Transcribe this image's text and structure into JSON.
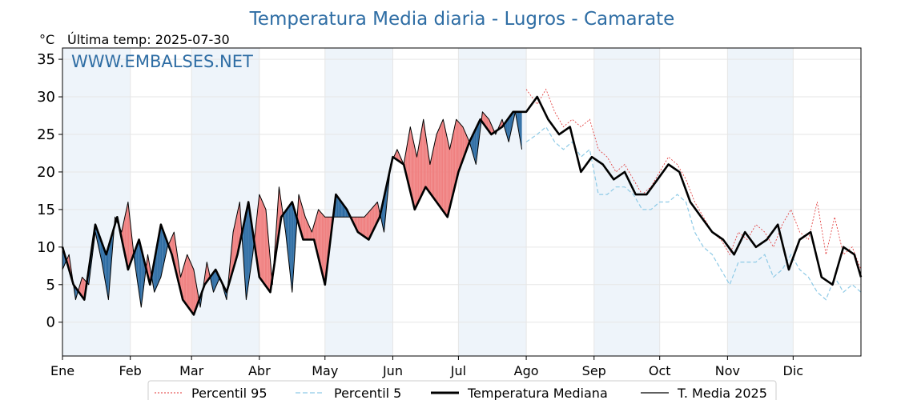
{
  "chart_data": {
    "type": "line",
    "title": "Temperatura Media diaria - Lugros - Camarate",
    "unit_label": "°C",
    "last_temp_label": "Última temp: 2025-07-30",
    "watermark": "WWW.EMBALSES.NET",
    "ylim": [
      -4.5,
      36.5
    ],
    "xlim": [
      1,
      366
    ],
    "yticks": [
      0,
      5,
      10,
      15,
      20,
      25,
      30,
      35
    ],
    "months": [
      {
        "label": "Ene",
        "day": 1
      },
      {
        "label": "Feb",
        "day": 32
      },
      {
        "label": "Mar",
        "day": 60
      },
      {
        "label": "Abr",
        "day": 91
      },
      {
        "label": "May",
        "day": 121
      },
      {
        "label": "Jun",
        "day": 152
      },
      {
        "label": "Jul",
        "day": 182
      },
      {
        "label": "Ago",
        "day": 213
      },
      {
        "label": "Sep",
        "day": 244
      },
      {
        "label": "Oct",
        "day": 274
      },
      {
        "label": "Nov",
        "day": 305
      },
      {
        "label": "Dic",
        "day": 335
      }
    ],
    "shaded_months": [
      "Ene",
      "Mar",
      "May",
      "Jul",
      "Sep",
      "Nov"
    ],
    "grid": true,
    "colors": {
      "p95": "#e03030",
      "p5": "#8ecae6",
      "median": "#000000",
      "media2025": "#000000",
      "warm_fill": "#f08080",
      "cold_fill": "#2e6da4",
      "band": "#eef4fa",
      "title": "#2e6da4"
    },
    "series": [
      {
        "name": "Percentil 95",
        "style": "dotted",
        "x": [
          213,
          218,
          222,
          226,
          230,
          234,
          238,
          242,
          246,
          250,
          254,
          258,
          262,
          266,
          270,
          274,
          278,
          282,
          286,
          290,
          294,
          298,
          302,
          306,
          310,
          314,
          318,
          322,
          326,
          330,
          334,
          338,
          342,
          346,
          350,
          354,
          358,
          362,
          366
        ],
        "values": [
          31,
          29,
          31,
          28,
          26,
          27,
          26,
          27,
          23,
          22,
          20,
          21,
          19,
          17,
          18,
          20,
          22,
          21,
          19,
          16,
          14,
          12,
          11,
          9,
          12,
          11,
          13,
          12,
          10,
          13,
          15,
          12,
          11,
          16,
          9,
          14,
          9,
          10,
          7
        ]
      },
      {
        "name": "Percentil 5",
        "style": "dashed",
        "x": [
          213,
          218,
          222,
          226,
          230,
          234,
          238,
          242,
          246,
          250,
          254,
          258,
          262,
          266,
          270,
          274,
          278,
          282,
          286,
          290,
          294,
          298,
          302,
          306,
          310,
          314,
          318,
          322,
          326,
          330,
          334,
          338,
          342,
          346,
          350,
          354,
          358,
          362,
          366
        ],
        "values": [
          24,
          25,
          26,
          24,
          23,
          24,
          22,
          23,
          17,
          17,
          18,
          18,
          17,
          15,
          15,
          16,
          16,
          17,
          16,
          12,
          10,
          9,
          7,
          5,
          8,
          8,
          8,
          9,
          6,
          7,
          9,
          7,
          6,
          4,
          3,
          6,
          4,
          5,
          4
        ]
      },
      {
        "name": "Temperatura Mediana",
        "style": "solid-thick",
        "x": [
          1,
          6,
          11,
          16,
          21,
          26,
          31,
          36,
          41,
          46,
          51,
          56,
          61,
          66,
          71,
          76,
          81,
          86,
          91,
          96,
          101,
          106,
          111,
          116,
          121,
          126,
          131,
          136,
          141,
          146,
          152,
          157,
          162,
          167,
          172,
          177,
          182,
          187,
          192,
          197,
          202,
          207,
          213,
          218,
          223,
          228,
          233,
          238,
          243,
          248,
          253,
          258,
          263,
          268,
          273,
          278,
          283,
          288,
          293,
          298,
          303,
          308,
          313,
          318,
          323,
          328,
          333,
          338,
          343,
          348,
          353,
          358,
          363,
          366
        ],
        "values": [
          10,
          5,
          3,
          13,
          9,
          14,
          7,
          11,
          5,
          13,
          9,
          3,
          1,
          5,
          7,
          4,
          9,
          16,
          6,
          4,
          14,
          16,
          11,
          11,
          5,
          17,
          15,
          12,
          11,
          14,
          22,
          21,
          15,
          18,
          16,
          14,
          20,
          24,
          27,
          25,
          26,
          28,
          28,
          30,
          27,
          25,
          26,
          20,
          22,
          21,
          19,
          20,
          17,
          17,
          19,
          21,
          20,
          16,
          14,
          12,
          11,
          9,
          12,
          10,
          11,
          13,
          7,
          11,
          12,
          6,
          5,
          10,
          9,
          6
        ],
        "x_end": 366
      },
      {
        "name": "T. Media 2025",
        "style": "solid",
        "x": [
          1,
          4,
          7,
          10,
          13,
          16,
          19,
          22,
          25,
          28,
          31,
          34,
          37,
          40,
          43,
          46,
          49,
          52,
          55,
          58,
          61,
          64,
          67,
          70,
          73,
          76,
          79,
          82,
          85,
          88,
          91,
          94,
          97,
          100,
          103,
          106,
          109,
          112,
          115,
          118,
          121,
          124,
          127,
          130,
          133,
          136,
          139,
          142,
          145,
          148,
          151,
          154,
          157,
          160,
          163,
          166,
          169,
          172,
          175,
          178,
          181,
          184,
          187,
          190,
          193,
          196,
          199,
          202,
          205,
          208,
          211
        ],
        "values": [
          7,
          9,
          3,
          6,
          5,
          12,
          8,
          3,
          14,
          12,
          16,
          8,
          2,
          9,
          4,
          6,
          10,
          12,
          6,
          9,
          7,
          2,
          8,
          4,
          6,
          3,
          12,
          16,
          3,
          9,
          17,
          15,
          5,
          18,
          12,
          4,
          17,
          14,
          12,
          15,
          14,
          14,
          14,
          14,
          14,
          14,
          14,
          15,
          16,
          12,
          21,
          23,
          21,
          26,
          22,
          27,
          21,
          25,
          27,
          23,
          27,
          26,
          24,
          21,
          28,
          27,
          25,
          27,
          24,
          28,
          23
        ]
      }
    ]
  }
}
